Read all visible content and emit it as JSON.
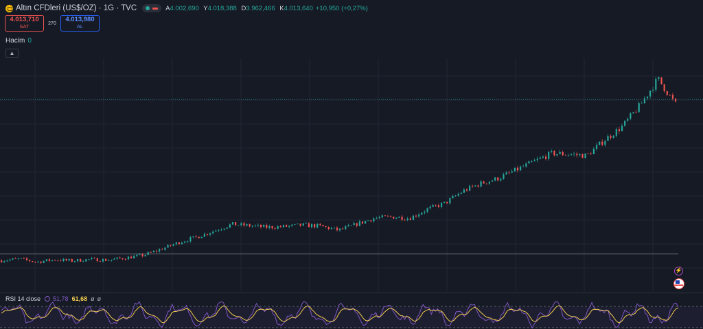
{
  "header": {
    "title": "Altın CFDleri (US$/OZ) · 1G · TVC",
    "ohlc": [
      {
        "key": "A",
        "value": "4.002,690"
      },
      {
        "key": "Y",
        "value": "4.018,388"
      },
      {
        "key": "D",
        "value": "3.962,466"
      },
      {
        "key": "K",
        "value": "4.013,640"
      }
    ],
    "change": "+10,950 (+0,27%)"
  },
  "trade": {
    "sell_price": "4.013,710",
    "sell_label": "SAT",
    "spread": "270",
    "buy_price": "4.013,980",
    "buy_label": "AL"
  },
  "volume": {
    "label": "Hacim",
    "value": "0"
  },
  "rsi": {
    "label": "RSI 14 close",
    "value1": "51,78",
    "value2": "61,68",
    "na1": "ø",
    "na2": "ø"
  },
  "colors": {
    "background": "#161a25",
    "up": "#26a69a",
    "down": "#ef5350",
    "rsi": "#7e57c2",
    "rsi_ma": "#f2cd4f"
  },
  "icons": {
    "symbol": "gold-coin-icon",
    "bolt": "lightning-icon",
    "flag": "us-flag-icon",
    "collapse": "chevron-up-icon"
  },
  "chart_data": {
    "type": "candlestick",
    "series": [
      {
        "name": "Altın CFDleri (US$/OZ)",
        "trend": [
          1940,
          1960,
          1920,
          1950,
          1935,
          1955,
          1945,
          1975,
          2010,
          2090,
          2180,
          2250,
          2335,
          2420,
          2400,
          2380,
          2390,
          2410,
          2395,
          2340,
          2420,
          2500,
          2520,
          2500,
          2620,
          2700,
          2860,
          2960,
          3030,
          3140,
          3250,
          3360,
          3350,
          3330,
          3540,
          3720,
          4000,
          4350,
          4013
        ]
      }
    ],
    "last_close": 4013.64,
    "rsi": {
      "name": "RSI 14 close",
      "last": 51.78,
      "ma_last": 61.68,
      "upper": 70,
      "lower": 30
    }
  }
}
